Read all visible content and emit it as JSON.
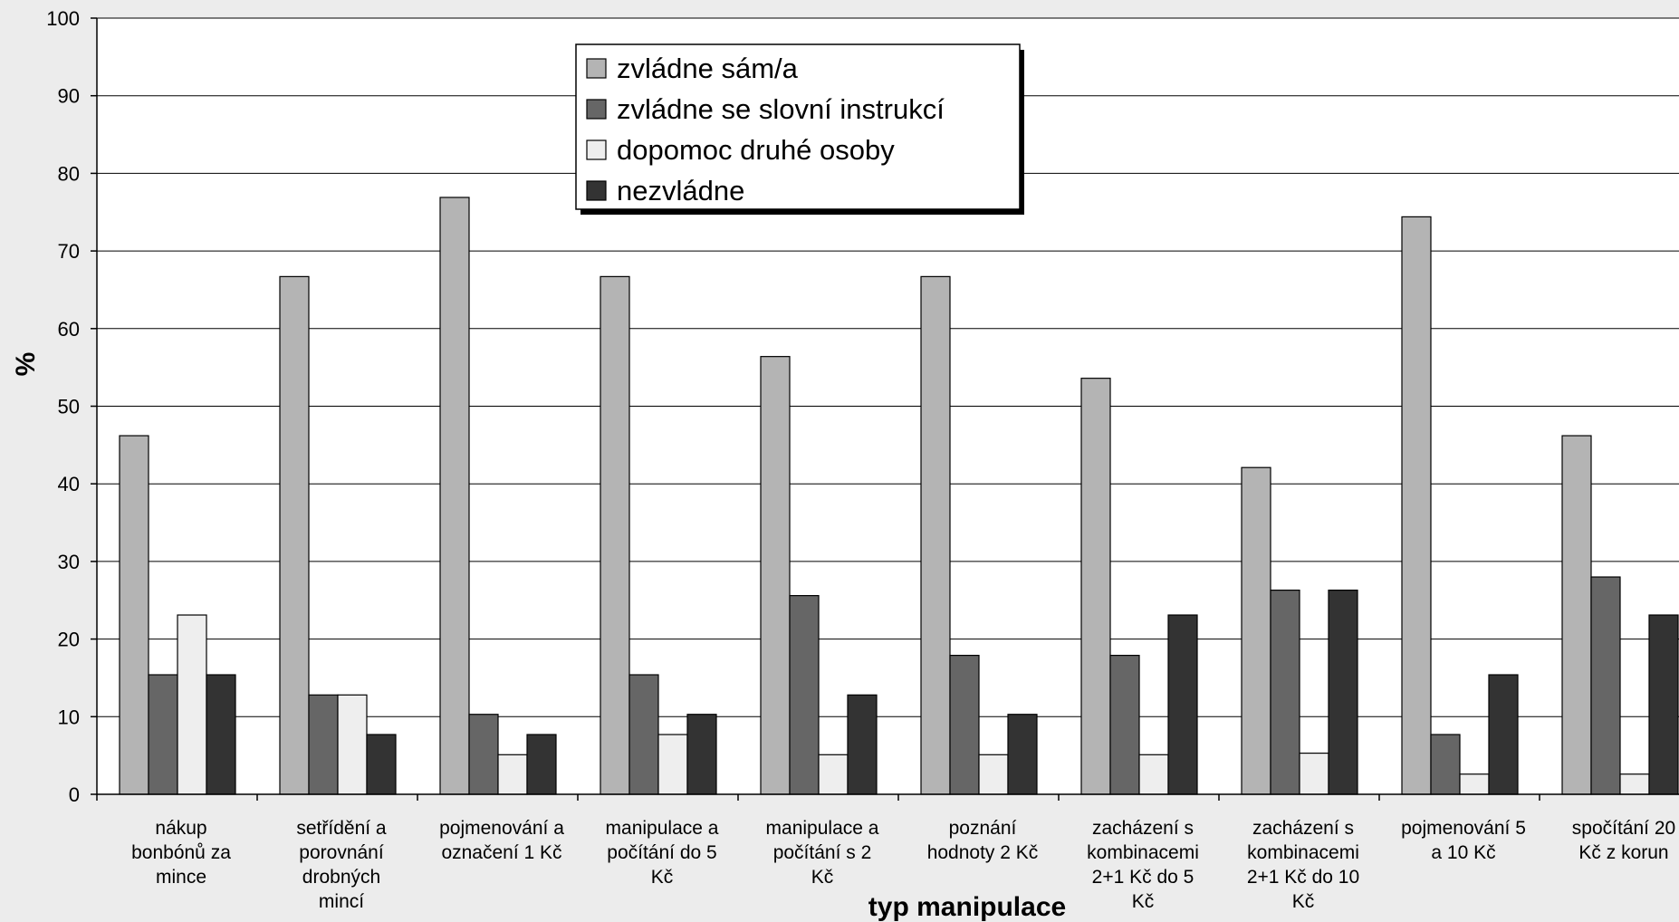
{
  "chart_data": {
    "type": "bar",
    "xlabel": "typ manipulace",
    "ylabel": "%",
    "ylim": [
      0,
      100
    ],
    "yticks": [
      0,
      10,
      20,
      30,
      40,
      50,
      60,
      70,
      80,
      90,
      100
    ],
    "grid": true,
    "legend_position": "top-center",
    "categories": [
      [
        "nákup",
        "bonbónů za",
        "mince"
      ],
      [
        "setřídění a",
        "porovnání",
        "drobných",
        "mincí"
      ],
      [
        "pojmenování a",
        "označení 1 Kč"
      ],
      [
        "manipulace a",
        "počítání do 5",
        "Kč"
      ],
      [
        "manipulace a",
        "počítání s 2",
        "Kč"
      ],
      [
        "poznání",
        "hodnoty 2 Kč"
      ],
      [
        "zacházení s",
        "kombinacemi",
        "2+1 Kč do 5",
        "Kč"
      ],
      [
        "zacházení s",
        "kombinacemi",
        "2+1 Kč do 10",
        "Kč"
      ],
      [
        "pojmenování 5",
        "a 10 Kč"
      ],
      [
        "spočítání 20",
        "Kč z korun"
      ]
    ],
    "series": [
      {
        "name": "zvládne sám/a",
        "color": "#b4b4b4",
        "values": [
          46.2,
          66.7,
          76.9,
          66.7,
          56.4,
          66.7,
          53.6,
          42.1,
          74.4,
          46.2
        ]
      },
      {
        "name": "zvládne se slovní instrukcí",
        "color": "#666666",
        "values": [
          15.4,
          12.8,
          10.3,
          15.4,
          25.6,
          17.9,
          17.9,
          26.3,
          7.7,
          28.0
        ]
      },
      {
        "name": "dopomoc druhé osoby",
        "color": "#eeeeee",
        "values": [
          23.1,
          12.8,
          5.1,
          7.7,
          5.1,
          5.1,
          5.1,
          5.3,
          2.6,
          2.6
        ]
      },
      {
        "name": "nezvládne",
        "color": "#333333",
        "values": [
          15.4,
          7.7,
          7.7,
          10.3,
          12.8,
          10.3,
          23.1,
          26.3,
          15.4,
          23.1
        ]
      }
    ]
  }
}
